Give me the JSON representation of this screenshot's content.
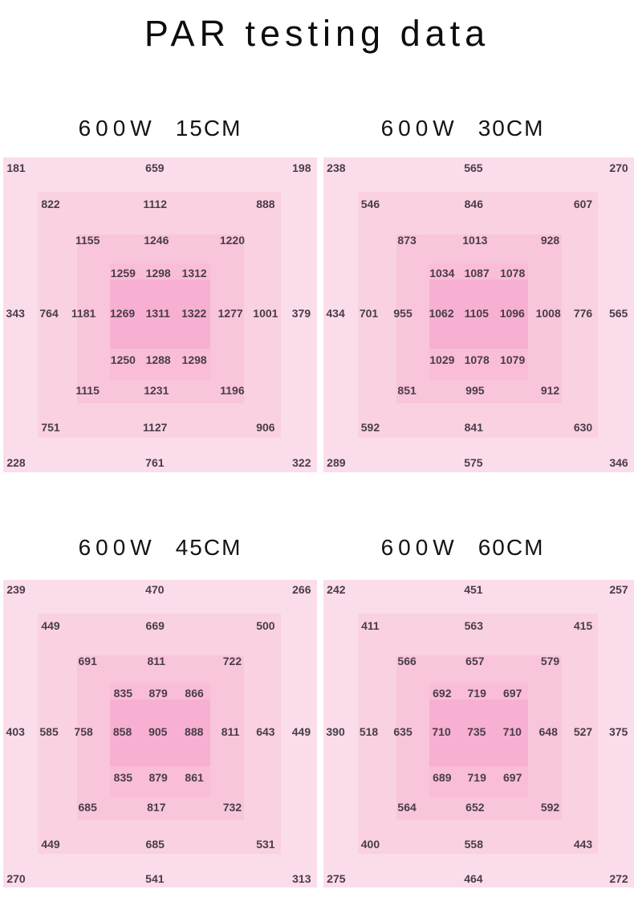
{
  "title": "PAR testing data",
  "colors": {
    "ring1": "#fbdcea",
    "ring2": "#f9d1e1",
    "ring3": "#f8c5da",
    "ring4": "#f9bdd7",
    "ring5": "#f7b0d1",
    "value_text": "#4a3c49",
    "title_text": "#0d0d0d"
  },
  "chart_data": [
    {
      "type": "heatmap",
      "title": "600W 15CM",
      "power_label": "600W",
      "distance_label": "15CM",
      "rows": [
        [
          181,
          659,
          198
        ],
        [
          822,
          1112,
          888
        ],
        [
          1155,
          1246,
          1220
        ],
        [
          1259,
          1298,
          1312
        ],
        [
          343,
          764,
          1181,
          1269,
          1311,
          1322,
          1277,
          1001,
          379
        ],
        [
          1250,
          1288,
          1298
        ],
        [
          1115,
          1231,
          1196
        ],
        [
          751,
          1127,
          906
        ],
        [
          228,
          761,
          322
        ]
      ]
    },
    {
      "type": "heatmap",
      "title": "600W 30CM",
      "power_label": "600W",
      "distance_label": "30CM",
      "rows": [
        [
          238,
          565,
          270
        ],
        [
          546,
          846,
          607
        ],
        [
          873,
          1013,
          928
        ],
        [
          1034,
          1087,
          1078
        ],
        [
          434,
          701,
          955,
          1062,
          1105,
          1096,
          1008,
          776,
          565
        ],
        [
          1029,
          1078,
          1079
        ],
        [
          851,
          995,
          912
        ],
        [
          592,
          841,
          630
        ],
        [
          289,
          575,
          346
        ]
      ]
    },
    {
      "type": "heatmap",
      "title": "600W 45CM",
      "power_label": "600W",
      "distance_label": "45CM",
      "rows": [
        [
          239,
          470,
          266
        ],
        [
          449,
          669,
          500
        ],
        [
          691,
          811,
          722
        ],
        [
          835,
          879,
          866
        ],
        [
          403,
          585,
          758,
          858,
          905,
          888,
          811,
          643,
          449
        ],
        [
          835,
          879,
          861
        ],
        [
          685,
          817,
          732
        ],
        [
          449,
          685,
          531
        ],
        [
          270,
          541,
          313
        ]
      ]
    },
    {
      "type": "heatmap",
      "title": "600W 60CM",
      "power_label": "600W",
      "distance_label": "60CM",
      "rows": [
        [
          242,
          451,
          257
        ],
        [
          411,
          563,
          415
        ],
        [
          566,
          657,
          579
        ],
        [
          692,
          719,
          697
        ],
        [
          390,
          518,
          635,
          710,
          735,
          710,
          648,
          527,
          375
        ],
        [
          689,
          719,
          697
        ],
        [
          564,
          652,
          592
        ],
        [
          400,
          558,
          443
        ],
        [
          275,
          464,
          272
        ]
      ]
    }
  ]
}
